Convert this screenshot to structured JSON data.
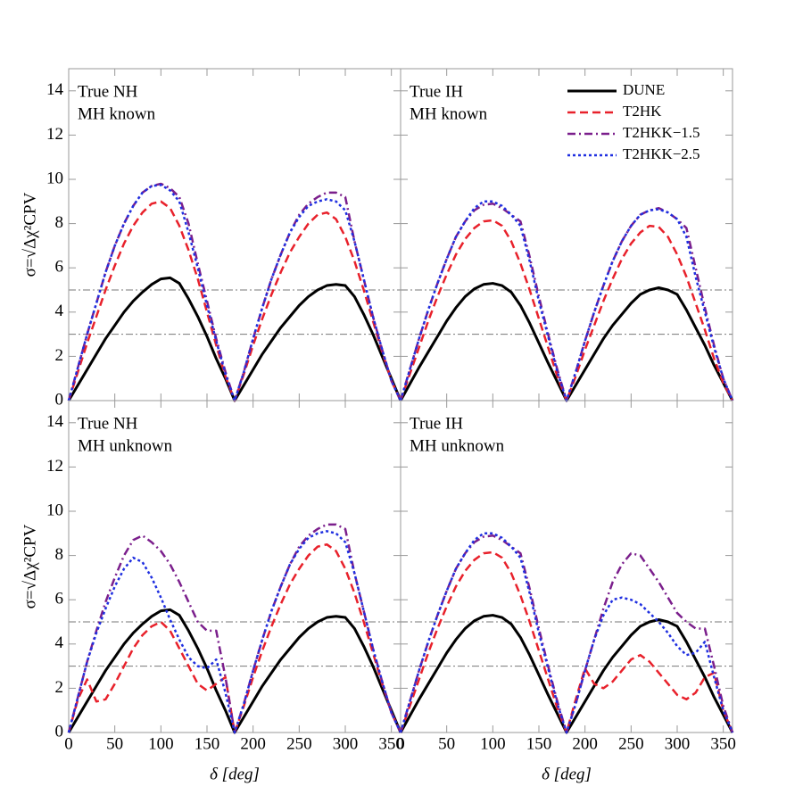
{
  "chart_data": [
    {
      "type": "line",
      "annotations": [
        "True NH",
        "MH known"
      ],
      "ylabel": "σ=√Δχ²CPV",
      "xlim": [
        0,
        360
      ],
      "xticks": [
        0,
        50,
        100,
        150,
        200,
        250,
        300,
        350
      ],
      "ylim": [
        0,
        15
      ],
      "yticks": [
        0,
        2,
        4,
        6,
        8,
        10,
        12,
        14
      ],
      "hlines": [
        3,
        5
      ],
      "x": [
        0,
        10,
        20,
        30,
        40,
        50,
        60,
        70,
        80,
        90,
        100,
        110,
        120,
        130,
        140,
        150,
        160,
        170,
        180,
        190,
        200,
        210,
        220,
        230,
        240,
        250,
        260,
        270,
        280,
        290,
        300,
        310,
        320,
        330,
        340,
        350,
        360
      ],
      "series": [
        {
          "color": "#000000",
          "dash": "solid",
          "values": [
            0,
            0.7,
            1.4,
            2.1,
            2.8,
            3.4,
            4.0,
            4.5,
            4.9,
            5.25,
            5.5,
            5.55,
            5.3,
            4.6,
            3.8,
            2.9,
            1.9,
            1.0,
            0,
            0.7,
            1.4,
            2.1,
            2.7,
            3.3,
            3.8,
            4.3,
            4.7,
            5.0,
            5.2,
            5.25,
            5.2,
            4.7,
            3.9,
            3.0,
            2.0,
            1.0,
            0
          ]
        },
        {
          "color": "#e8212b",
          "dash": "dashed",
          "values": [
            0,
            1.3,
            2.6,
            3.8,
            5.0,
            6.1,
            7.1,
            7.9,
            8.5,
            8.9,
            9.0,
            8.7,
            7.9,
            6.8,
            5.5,
            4.0,
            2.5,
            1.1,
            0,
            1.2,
            2.5,
            3.7,
            4.8,
            5.8,
            6.7,
            7.4,
            8.0,
            8.4,
            8.5,
            8.2,
            7.4,
            6.3,
            5.0,
            3.6,
            2.2,
            0.9,
            0
          ]
        },
        {
          "color": "#7b1f8c",
          "dash": "dashdot",
          "values": [
            0,
            1.5,
            3.0,
            4.4,
            5.8,
            7.0,
            8.0,
            8.8,
            9.4,
            9.7,
            9.8,
            9.6,
            9.2,
            8.0,
            6.2,
            4.5,
            2.8,
            1.3,
            0,
            1.3,
            2.8,
            4.2,
            5.5,
            6.6,
            7.6,
            8.4,
            8.9,
            9.2,
            9.4,
            9.4,
            9.2,
            7.2,
            5.5,
            3.8,
            2.3,
            0.9,
            0
          ]
        },
        {
          "color": "#1f2fe0",
          "dash": "dotted",
          "values": [
            0,
            1.5,
            3.0,
            4.4,
            5.8,
            7.0,
            8.0,
            8.8,
            9.4,
            9.7,
            9.75,
            9.5,
            9.0,
            7.6,
            6.0,
            4.3,
            2.7,
            1.2,
            0,
            1.3,
            2.8,
            4.2,
            5.5,
            6.6,
            7.6,
            8.3,
            8.8,
            9.0,
            9.1,
            9.0,
            8.6,
            7.2,
            5.5,
            3.8,
            2.3,
            0.9,
            0
          ]
        }
      ]
    },
    {
      "type": "line",
      "annotations": [
        "True IH",
        "MH known"
      ],
      "legend": "upper right",
      "xlim": [
        0,
        360
      ],
      "xticks": [
        0,
        50,
        100,
        150,
        200,
        250,
        300,
        350
      ],
      "ylim": [
        0,
        15
      ],
      "yticks": [
        0,
        2,
        4,
        6,
        8,
        10,
        12,
        14
      ],
      "hlines": [
        3,
        5
      ],
      "x": [
        0,
        10,
        20,
        30,
        40,
        50,
        60,
        70,
        80,
        90,
        100,
        110,
        120,
        130,
        140,
        150,
        160,
        170,
        180,
        190,
        200,
        210,
        220,
        230,
        240,
        250,
        260,
        270,
        280,
        290,
        300,
        310,
        320,
        330,
        340,
        350,
        360
      ],
      "series": [
        {
          "name": "DUNE",
          "color": "#000000",
          "dash": "solid",
          "values": [
            0,
            0.75,
            1.5,
            2.2,
            2.9,
            3.6,
            4.2,
            4.7,
            5.05,
            5.25,
            5.3,
            5.2,
            4.9,
            4.3,
            3.5,
            2.6,
            1.7,
            0.85,
            0,
            0.7,
            1.4,
            2.1,
            2.8,
            3.4,
            3.9,
            4.4,
            4.8,
            5.0,
            5.1,
            5.0,
            4.8,
            4.1,
            3.3,
            2.5,
            1.6,
            0.8,
            0
          ]
        },
        {
          "name": "T2HK",
          "color": "#e8212b",
          "dash": "dashed",
          "values": [
            0,
            1.2,
            2.4,
            3.6,
            4.7,
            5.7,
            6.6,
            7.3,
            7.8,
            8.1,
            8.15,
            7.9,
            7.2,
            6.2,
            5.0,
            3.7,
            2.4,
            1.1,
            0,
            1.1,
            2.3,
            3.4,
            4.5,
            5.5,
            6.4,
            7.1,
            7.6,
            7.9,
            7.85,
            7.4,
            6.6,
            5.6,
            4.4,
            3.2,
            1.9,
            0.8,
            0
          ]
        },
        {
          "name": "T2HKK−1.5",
          "color": "#7b1f8c",
          "dash": "dashdot",
          "values": [
            0,
            1.4,
            2.8,
            4.1,
            5.3,
            6.4,
            7.4,
            8.1,
            8.6,
            8.85,
            8.9,
            8.7,
            8.4,
            8.1,
            6.5,
            4.7,
            3.0,
            1.4,
            0,
            1.3,
            2.7,
            4.0,
            5.2,
            6.3,
            7.2,
            7.9,
            8.4,
            8.6,
            8.7,
            8.5,
            8.2,
            7.8,
            6.0,
            4.2,
            2.5,
            1.0,
            0
          ]
        },
        {
          "name": "T2HKK−2.5",
          "color": "#1f2fe0",
          "dash": "dotted",
          "values": [
            0,
            1.4,
            2.8,
            4.1,
            5.3,
            6.4,
            7.4,
            8.1,
            8.7,
            9.0,
            9.0,
            8.8,
            8.4,
            7.9,
            6.3,
            4.5,
            2.9,
            1.3,
            0,
            1.3,
            2.7,
            4.0,
            5.2,
            6.3,
            7.2,
            7.9,
            8.4,
            8.6,
            8.65,
            8.5,
            8.2,
            7.4,
            5.6,
            4.0,
            2.4,
            1.0,
            0
          ]
        }
      ]
    },
    {
      "type": "line",
      "annotations": [
        "True NH",
        "MH unknown"
      ],
      "ylabel": "σ=√Δχ²CPV",
      "xlabel": "δ [deg]",
      "xlim": [
        0,
        360
      ],
      "xticks": [
        0,
        50,
        100,
        150,
        200,
        250,
        300,
        350
      ],
      "ylim": [
        0,
        15
      ],
      "yticks": [
        0,
        2,
        4,
        6,
        8,
        10,
        12,
        14
      ],
      "hlines": [
        3,
        5
      ],
      "x": [
        0,
        10,
        20,
        30,
        40,
        50,
        60,
        70,
        80,
        90,
        100,
        110,
        120,
        130,
        140,
        150,
        160,
        170,
        180,
        190,
        200,
        210,
        220,
        230,
        240,
        250,
        260,
        270,
        280,
        290,
        300,
        310,
        320,
        330,
        340,
        350,
        360
      ],
      "series": [
        {
          "color": "#000000",
          "dash": "solid",
          "values": [
            0,
            0.7,
            1.4,
            2.1,
            2.8,
            3.4,
            4.0,
            4.5,
            4.9,
            5.25,
            5.5,
            5.55,
            5.3,
            4.6,
            3.8,
            2.9,
            1.9,
            1.0,
            0,
            0.7,
            1.4,
            2.1,
            2.7,
            3.3,
            3.8,
            4.3,
            4.7,
            5.0,
            5.2,
            5.25,
            5.2,
            4.7,
            3.9,
            3.0,
            2.0,
            1.0,
            0
          ]
        },
        {
          "color": "#e8212b",
          "dash": "dashed",
          "values": [
            0,
            1.5,
            2.4,
            1.4,
            1.5,
            2.2,
            3.0,
            3.8,
            4.4,
            4.8,
            5.0,
            4.6,
            3.8,
            3.0,
            2.2,
            1.9,
            2.2,
            2.5,
            0,
            1.2,
            2.5,
            3.7,
            4.8,
            5.8,
            6.7,
            7.4,
            8.0,
            8.4,
            8.5,
            8.2,
            7.4,
            6.3,
            5.0,
            3.6,
            2.2,
            0.9,
            0
          ]
        },
        {
          "color": "#7b1f8c",
          "dash": "dashdot",
          "values": [
            0,
            1.6,
            3.2,
            4.6,
            5.9,
            7.0,
            8.0,
            8.7,
            8.9,
            8.6,
            8.2,
            7.6,
            6.8,
            5.9,
            5.0,
            4.6,
            4.6,
            2.5,
            0,
            1.3,
            2.8,
            4.2,
            5.5,
            6.6,
            7.6,
            8.4,
            8.9,
            9.2,
            9.4,
            9.4,
            9.2,
            7.2,
            5.5,
            3.8,
            2.3,
            0.9,
            0
          ]
        },
        {
          "color": "#1f2fe0",
          "dash": "dotted",
          "values": [
            0,
            1.6,
            3.2,
            4.5,
            5.6,
            6.6,
            7.4,
            7.9,
            7.7,
            7.0,
            6.1,
            5.1,
            4.2,
            3.4,
            3.0,
            2.9,
            3.3,
            1.8,
            0,
            1.3,
            2.8,
            4.2,
            5.5,
            6.6,
            7.6,
            8.3,
            8.8,
            9.0,
            9.1,
            9.0,
            8.6,
            7.2,
            5.5,
            3.8,
            2.3,
            0.9,
            0
          ]
        }
      ]
    },
    {
      "type": "line",
      "annotations": [
        "True IH",
        "MH unknown"
      ],
      "xlabel": "δ [deg]",
      "xlim": [
        0,
        360
      ],
      "xticks": [
        0,
        50,
        100,
        150,
        200,
        250,
        300,
        350
      ],
      "ylim": [
        0,
        15
      ],
      "yticks": [
        0,
        2,
        4,
        6,
        8,
        10,
        12,
        14
      ],
      "hlines": [
        3,
        5
      ],
      "x": [
        0,
        10,
        20,
        30,
        40,
        50,
        60,
        70,
        80,
        90,
        100,
        110,
        120,
        130,
        140,
        150,
        160,
        170,
        180,
        190,
        200,
        210,
        220,
        230,
        240,
        250,
        260,
        270,
        280,
        290,
        300,
        310,
        320,
        330,
        340,
        350,
        360
      ],
      "series": [
        {
          "color": "#000000",
          "dash": "solid",
          "values": [
            0,
            0.75,
            1.5,
            2.2,
            2.9,
            3.6,
            4.2,
            4.7,
            5.05,
            5.25,
            5.3,
            5.2,
            4.9,
            4.3,
            3.5,
            2.6,
            1.7,
            0.85,
            0,
            0.7,
            1.4,
            2.1,
            2.8,
            3.4,
            3.9,
            4.4,
            4.8,
            5.0,
            5.1,
            5.0,
            4.8,
            4.1,
            3.3,
            2.5,
            1.6,
            0.8,
            0
          ]
        },
        {
          "color": "#e8212b",
          "dash": "dashed",
          "values": [
            0,
            1.2,
            2.4,
            3.6,
            4.7,
            5.7,
            6.6,
            7.3,
            7.8,
            8.1,
            8.15,
            7.9,
            7.2,
            6.2,
            5.0,
            3.7,
            2.4,
            1.1,
            0,
            1.5,
            2.9,
            2.2,
            2.0,
            2.3,
            2.8,
            3.3,
            3.5,
            3.2,
            2.7,
            2.2,
            1.7,
            1.5,
            1.8,
            2.5,
            2.7,
            1.0,
            0
          ]
        },
        {
          "color": "#7b1f8c",
          "dash": "dashdot",
          "values": [
            0,
            1.4,
            2.8,
            4.1,
            5.3,
            6.4,
            7.4,
            8.1,
            8.6,
            8.85,
            8.9,
            8.7,
            8.4,
            8.1,
            6.5,
            4.7,
            3.0,
            1.4,
            0,
            1.3,
            2.8,
            4.2,
            5.6,
            6.8,
            7.6,
            8.1,
            8.0,
            7.4,
            6.8,
            6.1,
            5.4,
            5.0,
            4.7,
            4.7,
            3.0,
            1.2,
            0
          ]
        },
        {
          "color": "#1f2fe0",
          "dash": "dotted",
          "values": [
            0,
            1.4,
            2.8,
            4.1,
            5.3,
            6.4,
            7.4,
            8.1,
            8.7,
            9.0,
            9.0,
            8.8,
            8.4,
            7.9,
            6.3,
            4.5,
            2.9,
            1.3,
            0,
            1.3,
            2.8,
            4.2,
            5.3,
            6.0,
            6.1,
            6.0,
            5.8,
            5.4,
            5.0,
            4.5,
            3.9,
            3.5,
            3.6,
            4.1,
            2.5,
            1.0,
            0
          ]
        }
      ]
    }
  ]
}
